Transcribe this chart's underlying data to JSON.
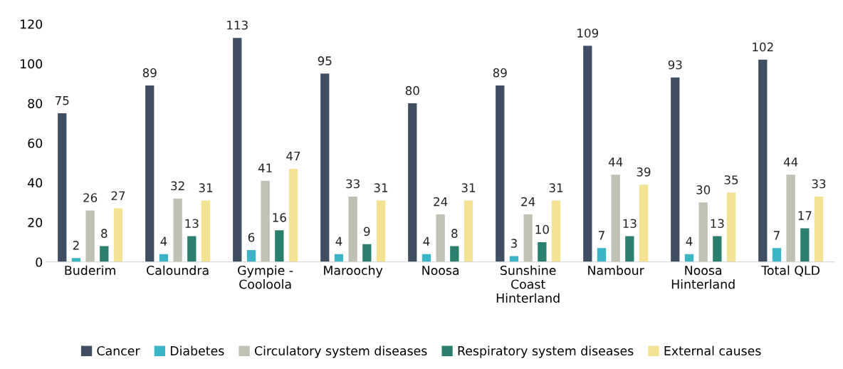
{
  "chart_data": {
    "type": "bar",
    "categories": [
      "Buderim",
      "Caloundra",
      "Gympie -\nCooloola",
      "Maroochy",
      "Noosa",
      "Sunshine\nCoast\nHinterland",
      "Nambour",
      "Noosa\nHinterland",
      "Total QLD"
    ],
    "series": [
      {
        "name": "Cancer",
        "color": "#3f4e63",
        "values": [
          75,
          89,
          113,
          95,
          80,
          89,
          109,
          93,
          102
        ]
      },
      {
        "name": "Diabetes",
        "color": "#3ab5c6",
        "values": [
          2,
          4,
          6,
          4,
          4,
          3,
          7,
          4,
          7
        ]
      },
      {
        "name": "Circulatory system diseases",
        "color": "#bfc1b2",
        "values": [
          26,
          32,
          41,
          33,
          24,
          24,
          44,
          30,
          44
        ]
      },
      {
        "name": "Respiratory system diseases",
        "color": "#2a7f6f",
        "values": [
          8,
          13,
          16,
          9,
          8,
          10,
          13,
          13,
          17
        ]
      },
      {
        "name": "External causes",
        "color": "#f2e291",
        "values": [
          27,
          31,
          47,
          31,
          31,
          31,
          39,
          35,
          33
        ]
      }
    ],
    "ylim": [
      0,
      120
    ],
    "yticks": [
      0,
      20,
      40,
      60,
      80,
      100,
      120
    ],
    "data_labels": true,
    "grid": false,
    "legend": "bottom"
  }
}
